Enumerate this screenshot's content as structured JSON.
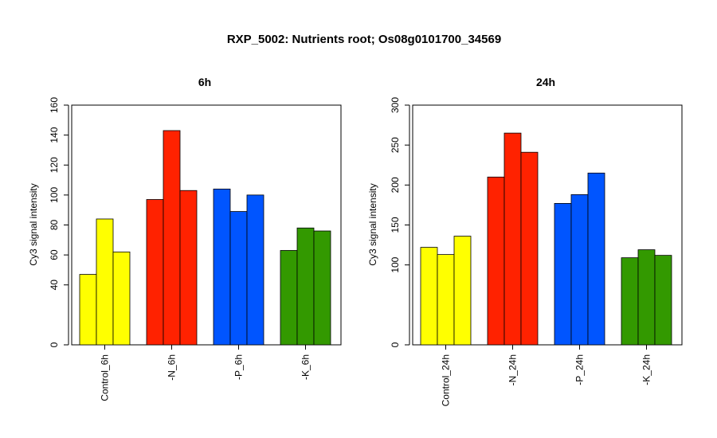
{
  "figure": {
    "title": "RXP_5002: Nutrients root; Os08g0101700_34569"
  },
  "chart_data": [
    {
      "type": "bar",
      "title": "6h",
      "ylabel": "Cy3 signal intensity",
      "xlabel": "",
      "ylim": [
        0,
        160
      ],
      "yticks": [
        0,
        40,
        60,
        80,
        100,
        120,
        140,
        160
      ],
      "categories": [
        "Control_6h",
        "-N_6h",
        "-P_6h",
        "-K_6h"
      ],
      "colors": [
        "#ffff00",
        "#ff2200",
        "#0055ff",
        "#339900"
      ],
      "values": [
        [
          47,
          84,
          62
        ],
        [
          97,
          143,
          103
        ],
        [
          104,
          89,
          100
        ],
        [
          63,
          78,
          76
        ]
      ],
      "grid": false
    },
    {
      "type": "bar",
      "title": "24h",
      "ylabel": "Cy3 signal intensity",
      "xlabel": "",
      "ylim": [
        0,
        300
      ],
      "yticks": [
        0,
        100,
        150,
        200,
        250,
        300
      ],
      "categories": [
        "Control_24h",
        "-N_24h",
        "-P_24h",
        "-K_24h"
      ],
      "colors": [
        "#ffff00",
        "#ff2200",
        "#0055ff",
        "#339900"
      ],
      "values": [
        [
          122,
          113,
          136
        ],
        [
          210,
          265,
          241
        ],
        [
          177,
          188,
          215
        ],
        [
          109,
          119,
          112
        ]
      ],
      "grid": false
    }
  ]
}
